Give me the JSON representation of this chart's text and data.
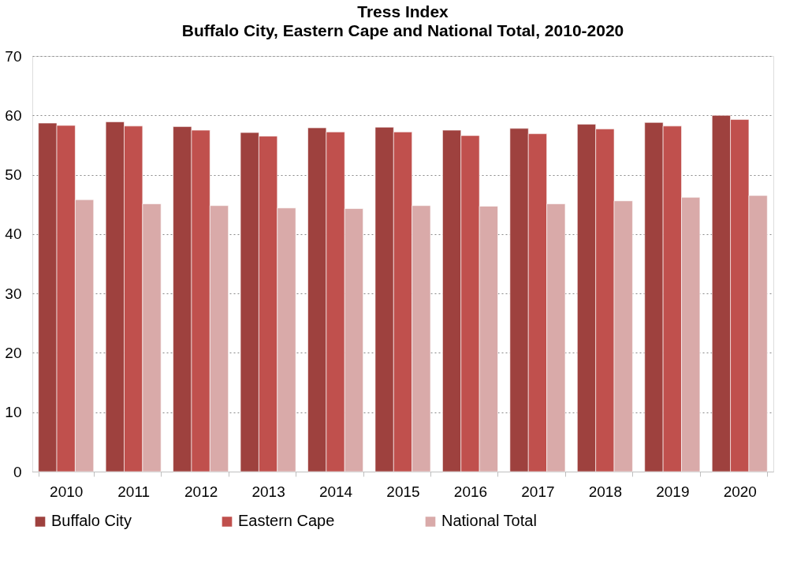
{
  "chart_data": {
    "type": "bar",
    "title": "Tress Index",
    "subtitle": "Buffalo City, Eastern Cape and National Total, 2010-2020",
    "categories": [
      "2010",
      "2011",
      "2012",
      "2013",
      "2014",
      "2015",
      "2016",
      "2017",
      "2018",
      "2019",
      "2020"
    ],
    "series": [
      {
        "name": "Buffalo City",
        "color": "#9e413e",
        "values": [
          58.7,
          58.9,
          58.1,
          57.1,
          57.9,
          58.0,
          57.5,
          57.8,
          58.5,
          58.8,
          60.0
        ]
      },
      {
        "name": "Eastern Cape",
        "color": "#c0504d",
        "values": [
          58.3,
          58.2,
          57.5,
          56.5,
          57.2,
          57.2,
          56.6,
          56.9,
          57.7,
          58.2,
          59.3
        ]
      },
      {
        "name": "National Total",
        "color": "#d9aaa9",
        "values": [
          45.8,
          45.1,
          44.8,
          44.4,
          44.3,
          44.8,
          44.7,
          45.1,
          45.6,
          46.2,
          46.5
        ]
      }
    ],
    "ylim": [
      0,
      70
    ],
    "yticks": [
      0,
      10,
      20,
      30,
      40,
      50,
      60,
      70
    ],
    "grid": "y",
    "legend": "bottom"
  }
}
